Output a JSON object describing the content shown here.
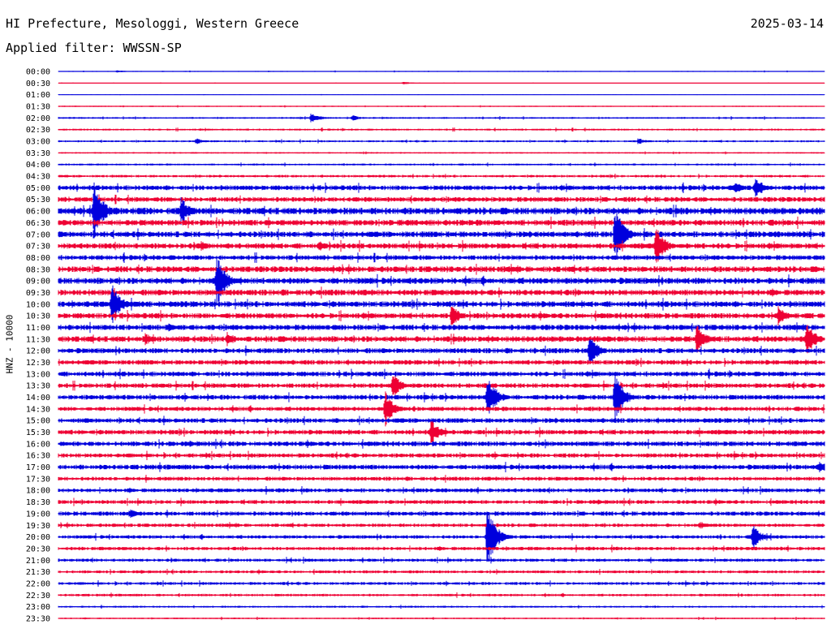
{
  "header": {
    "station": "HI Prefecture, Mesologgi, Western Greece",
    "date": "2025-03-14",
    "filter_text": "Applied filter: WWSSN-SP"
  },
  "colors": {
    "even_row": "#0000dd",
    "odd_row": "#ee0033",
    "text": "#000000"
  },
  "chart_data": {
    "type": "line",
    "title": "HI Prefecture, Mesologgi, Western Greece",
    "ylabel": "HNZ - 10000",
    "row_labels": [
      "00:00",
      "00:30",
      "01:00",
      "01:30",
      "02:00",
      "02:30",
      "03:00",
      "03:30",
      "04:00",
      "04:30",
      "05:00",
      "05:30",
      "06:00",
      "06:30",
      "07:00",
      "07:30",
      "08:00",
      "08:30",
      "09:00",
      "09:30",
      "10:00",
      "10:30",
      "11:00",
      "11:30",
      "12:00",
      "12:30",
      "13:00",
      "13:30",
      "14:00",
      "14:30",
      "15:00",
      "15:30",
      "16:00",
      "16:30",
      "17:00",
      "17:30",
      "18:00",
      "18:30",
      "19:00",
      "19:30",
      "20:00",
      "20:30",
      "21:00",
      "21:30",
      "22:00",
      "22:30",
      "23:00",
      "23:30"
    ],
    "row_minutes": 30,
    "noise_level": [
      0.5,
      0.3,
      0.3,
      0.6,
      0.9,
      1.0,
      1.0,
      0.8,
      1.0,
      1.3,
      2.5,
      2.5,
      3.5,
      3.0,
      3.0,
      2.8,
      2.5,
      3.0,
      3.2,
      3.0,
      3.0,
      2.8,
      2.8,
      3.0,
      2.6,
      2.4,
      2.5,
      2.4,
      2.5,
      2.2,
      2.4,
      2.4,
      2.5,
      2.2,
      2.5,
      2.0,
      2.0,
      2.0,
      2.2,
      1.8,
      1.8,
      1.8,
      1.6,
      1.5,
      1.5,
      1.3,
      1.0,
      0.8
    ],
    "events": [
      {
        "row": 0,
        "minute": 2.3,
        "amp": 2
      },
      {
        "row": 1,
        "minute": 13.5,
        "amp": 2
      },
      {
        "row": 4,
        "minute": 9.9,
        "amp": 7
      },
      {
        "row": 4,
        "minute": 11.5,
        "amp": 4
      },
      {
        "row": 6,
        "minute": 5.4,
        "amp": 4
      },
      {
        "row": 6,
        "minute": 22.7,
        "amp": 4
      },
      {
        "row": 10,
        "minute": 27.3,
        "amp": 14
      },
      {
        "row": 10,
        "minute": 26.5,
        "amp": 8
      },
      {
        "row": 12,
        "minute": 1.4,
        "amp": 40
      },
      {
        "row": 12,
        "minute": 4.8,
        "amp": 18
      },
      {
        "row": 14,
        "minute": 21.8,
        "amp": 36
      },
      {
        "row": 15,
        "minute": 23.4,
        "amp": 25
      },
      {
        "row": 15,
        "minute": 5.6,
        "amp": 7
      },
      {
        "row": 15,
        "minute": 10.2,
        "amp": 7
      },
      {
        "row": 18,
        "minute": 6.2,
        "amp": 34
      },
      {
        "row": 20,
        "minute": 2.1,
        "amp": 26
      },
      {
        "row": 21,
        "minute": 15.4,
        "amp": 14
      },
      {
        "row": 21,
        "minute": 28.2,
        "amp": 14
      },
      {
        "row": 22,
        "minute": 4.3,
        "amp": 6
      },
      {
        "row": 23,
        "minute": 6.6,
        "amp": 10
      },
      {
        "row": 23,
        "minute": 25.0,
        "amp": 20
      },
      {
        "row": 23,
        "minute": 29.3,
        "amp": 22
      },
      {
        "row": 23,
        "minute": 3.4,
        "amp": 8
      },
      {
        "row": 24,
        "minute": 20.8,
        "amp": 20
      },
      {
        "row": 27,
        "minute": 13.1,
        "amp": 16
      },
      {
        "row": 28,
        "minute": 16.8,
        "amp": 30
      },
      {
        "row": 28,
        "minute": 21.8,
        "amp": 32
      },
      {
        "row": 29,
        "minute": 12.8,
        "amp": 22
      },
      {
        "row": 31,
        "minute": 14.6,
        "amp": 16
      },
      {
        "row": 34,
        "minute": 29.8,
        "amp": 8
      },
      {
        "row": 38,
        "minute": 2.8,
        "amp": 6
      },
      {
        "row": 40,
        "minute": 16.8,
        "amp": 40
      },
      {
        "row": 40,
        "minute": 27.2,
        "amp": 16
      },
      {
        "row": 39,
        "minute": 25.1,
        "amp": 4
      }
    ]
  }
}
